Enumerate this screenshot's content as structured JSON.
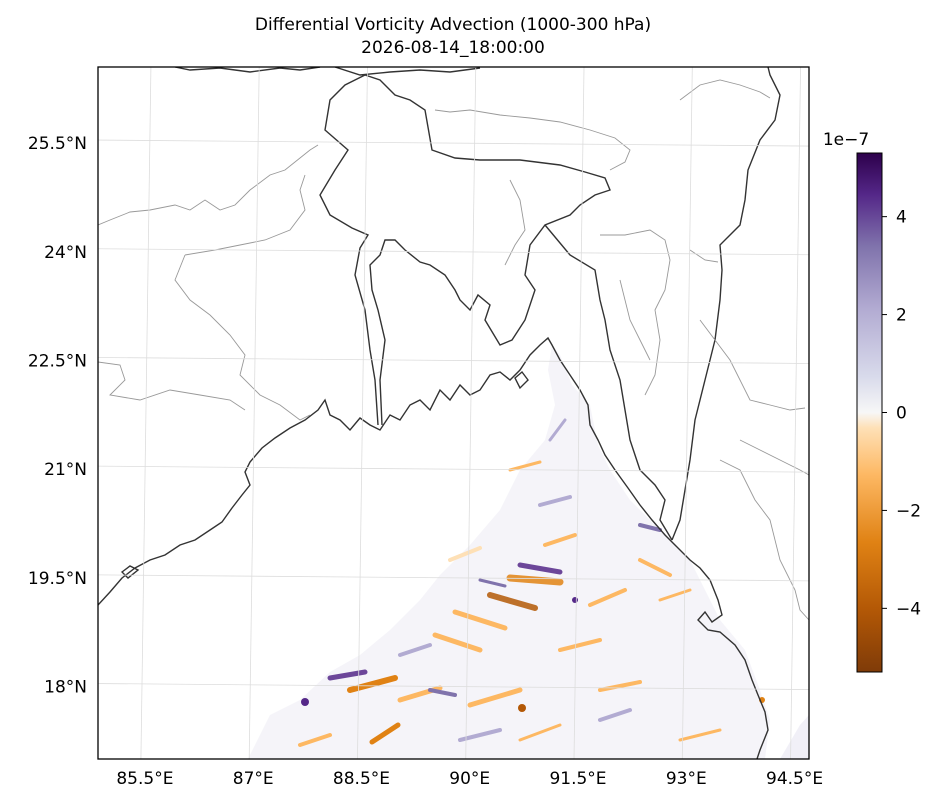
{
  "title": {
    "line1": "Differential Vorticity Advection (1000-300 hPa)",
    "line2": "2026-08-14_18:00:00"
  },
  "map": {
    "lon_labels": [
      "85.5°E",
      "87°E",
      "88.5°E",
      "90°E",
      "91.5°E",
      "93°E",
      "94.5°E"
    ],
    "lat_labels": [
      "25.5°N",
      "24°N",
      "22.5°N",
      "21°N",
      "19.5°N",
      "18°N"
    ],
    "lon_values": [
      85.5,
      87,
      88.5,
      90,
      91.5,
      93,
      94.5
    ],
    "lat_values": [
      25.5,
      24,
      22.5,
      21,
      19.5,
      18
    ],
    "lon_range": [
      84.85,
      94.7
    ],
    "lat_range": [
      17.0,
      26.55
    ],
    "gridlines": true
  },
  "colorbar": {
    "colormap": "PuOr",
    "range": [
      -5.3,
      5.3
    ],
    "multiplier_label": "1e−7",
    "tick_values": [
      4,
      2,
      0,
      -2,
      -4
    ],
    "tick_labels": [
      "4",
      "2",
      "0",
      "−2",
      "−4"
    ]
  },
  "colors": {
    "coastline": "#333333",
    "borders": "#999999",
    "gridline": "#dddddd",
    "positive_strong": "#2d004b",
    "positive_mid": "#8073ac",
    "neutral": "#f7f7f7",
    "negative_mid": "#fdb863",
    "negative_strong": "#7f3b08"
  }
}
